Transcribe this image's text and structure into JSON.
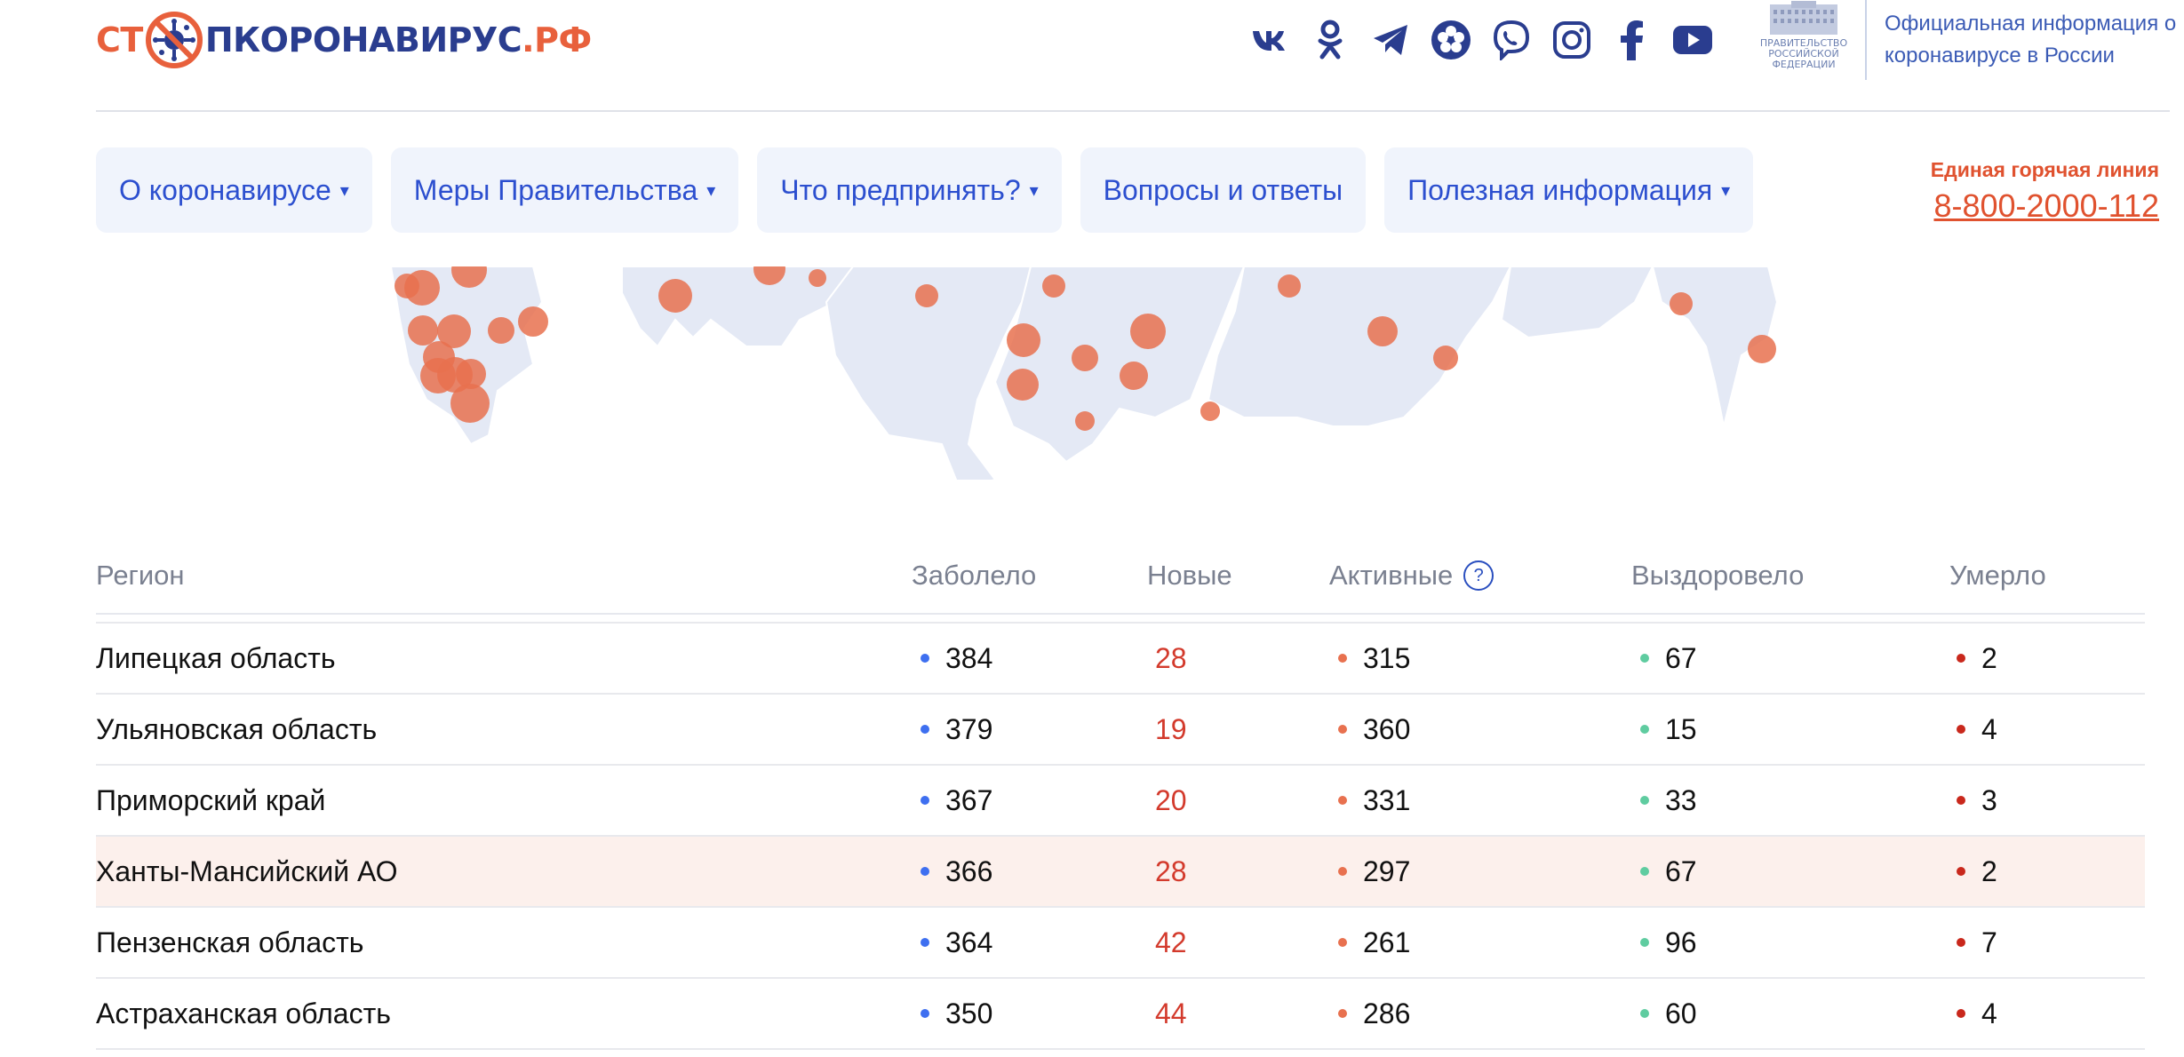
{
  "header": {
    "logo": {
      "part1": "СТ",
      "part2": "П",
      "part3": "КОРОНАВИРУС",
      "part4": ".РФ"
    },
    "socials": [
      "vk-icon",
      "odnoklassniki-icon",
      "telegram-icon",
      "flower-icon",
      "viber-icon",
      "instagram-icon",
      "facebook-icon",
      "youtube-icon"
    ],
    "gov_emblem_lines": [
      "ПРАВИТЕЛЬСТВО",
      "РОССИЙСКОЙ",
      "ФЕДЕРАЦИИ"
    ],
    "gov_text": "Официальная информация о коронавирусе в России"
  },
  "nav": {
    "items": [
      {
        "label": "О коронавирусе",
        "caret": true
      },
      {
        "label": "Меры Правительства",
        "caret": true
      },
      {
        "label": "Что предпринять?",
        "caret": true
      },
      {
        "label": "Вопросы и ответы",
        "caret": false
      },
      {
        "label": "Полезная информация",
        "caret": true
      }
    ],
    "caret_glyph": "▾"
  },
  "hotline": {
    "label": "Единая горячая линия",
    "phone": "8-800-2000-112"
  },
  "table": {
    "headers": {
      "region": "Регион",
      "confirmed": "Заболело",
      "new": "Новые",
      "active": "Активные",
      "help": "?",
      "recovered": "Выздоровело",
      "deaths": "Умерло"
    },
    "rows": [
      {
        "region": "Липецкая область",
        "confirmed": "384",
        "new": "28",
        "active": "315",
        "recovered": "67",
        "deaths": "2",
        "highlighted": false
      },
      {
        "region": "Ульяновская область",
        "confirmed": "379",
        "new": "19",
        "active": "360",
        "recovered": "15",
        "deaths": "4",
        "highlighted": false
      },
      {
        "region": "Приморский край",
        "confirmed": "367",
        "new": "20",
        "active": "331",
        "recovered": "33",
        "deaths": "3",
        "highlighted": false
      },
      {
        "region": "Ханты-Мансийский АО",
        "confirmed": "366",
        "new": "28",
        "active": "297",
        "recovered": "67",
        "deaths": "2",
        "highlighted": true
      },
      {
        "region": "Пензенская область",
        "confirmed": "364",
        "new": "42",
        "active": "261",
        "recovered": "96",
        "deaths": "7",
        "highlighted": false
      },
      {
        "region": "Астраханская область",
        "confirmed": "350",
        "new": "44",
        "active": "286",
        "recovered": "60",
        "deaths": "4",
        "highlighted": false
      }
    ]
  },
  "colors": {
    "accent_blue": "#2c4fcf",
    "accent_red": "#e8603c",
    "dot_confirmed": "#3e6ff0",
    "dot_active": "#e8714f",
    "dot_recovered": "#5fcca0",
    "dot_deaths": "#c9281c",
    "map_land": "#e4e9f5",
    "map_bubble": "#e8714f"
  }
}
